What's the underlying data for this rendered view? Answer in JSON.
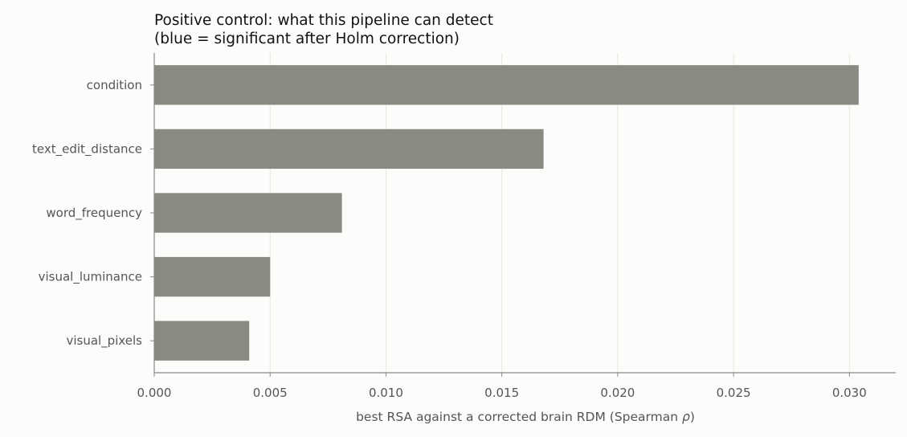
{
  "chart_data": {
    "type": "bar",
    "orientation": "horizontal",
    "title_lines": [
      "Positive control: what this pipeline can detect",
      "(blue = significant after Holm correction)"
    ],
    "xlabel_prefix": "best RSA against a corrected brain RDM (Spearman ",
    "xlabel_symbol": "ρ",
    "xlabel_suffix": ")",
    "ylabel": "",
    "categories": [
      "condition",
      "text_edit_distance",
      "word_frequency",
      "visual_luminance",
      "visual_pixels"
    ],
    "values": [
      0.0304,
      0.0168,
      0.0081,
      0.005,
      0.0041
    ],
    "xlim": [
      0,
      0.032
    ],
    "xticks": [
      0.0,
      0.005,
      0.01,
      0.015,
      0.02,
      0.025,
      0.03
    ],
    "xtick_labels": [
      "0.000",
      "0.005",
      "0.010",
      "0.015",
      "0.020",
      "0.025",
      "0.030"
    ],
    "grid": "x",
    "legend": "none",
    "colors": {
      "bar": "#8a8a82",
      "significant": "#1f77b4",
      "grid": "#e6e6e2",
      "axis": "#888888"
    }
  }
}
